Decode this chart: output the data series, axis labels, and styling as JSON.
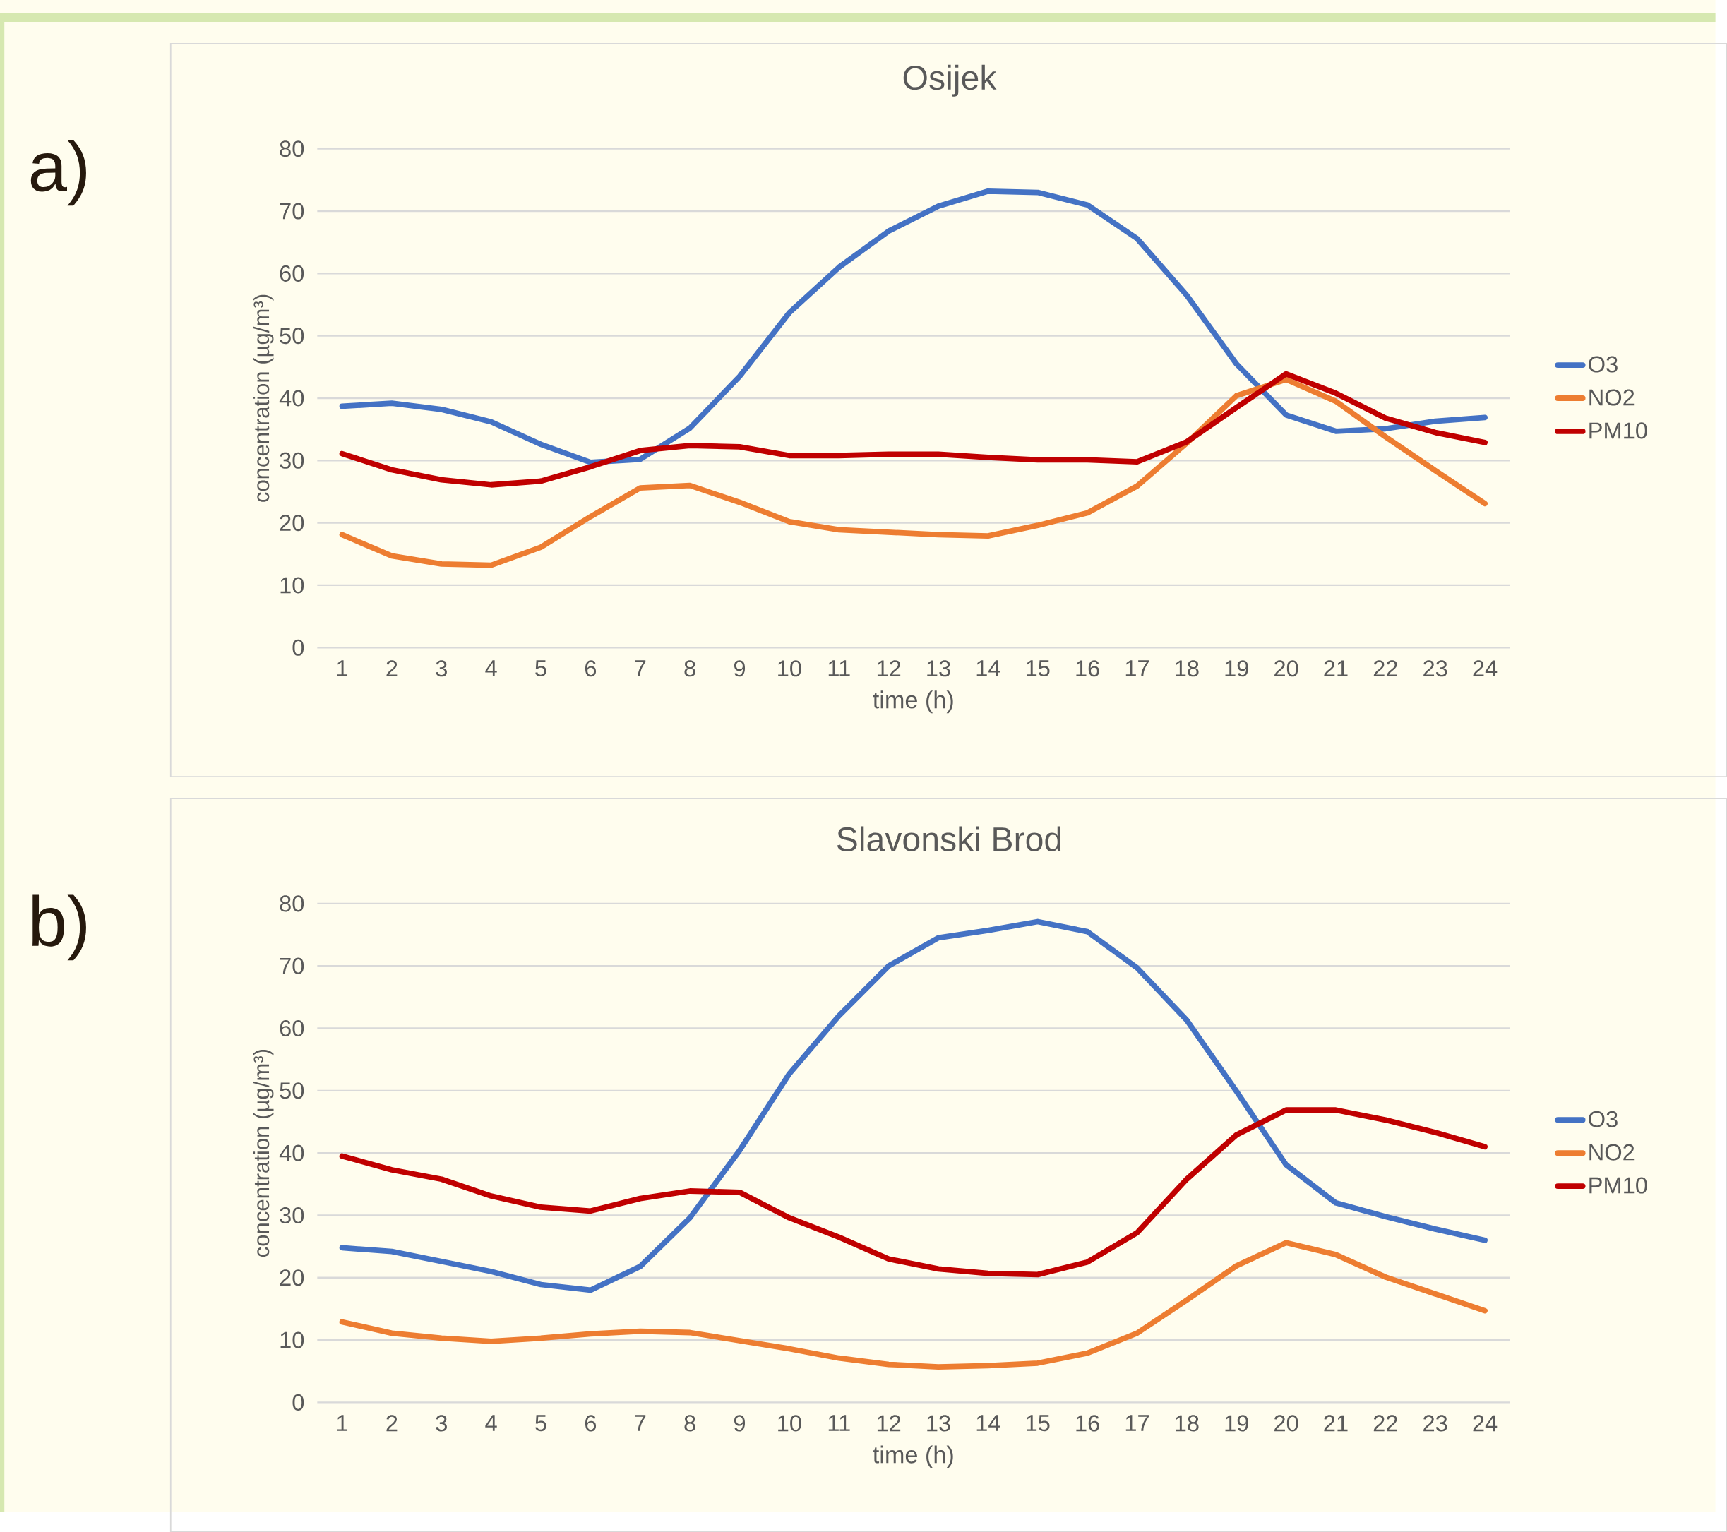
{
  "chart_data": [
    {
      "type": "line",
      "title": "Osijek",
      "xlabel": "time (h)",
      "ylabel": "concentration (µg/m³)",
      "annotations": [
        "a)"
      ],
      "categories": [
        "1",
        "2",
        "3",
        "4",
        "5",
        "6",
        "7",
        "8",
        "9",
        "10",
        "11",
        "12",
        "13",
        "14",
        "15",
        "16",
        "17",
        "18",
        "19",
        "20",
        "21",
        "22",
        "23",
        "24"
      ],
      "ylim": [
        0,
        80
      ],
      "yticks": [
        0,
        10,
        20,
        30,
        40,
        50,
        60,
        70,
        80
      ],
      "grid": "y",
      "legend": "right",
      "line_style": "solid",
      "series": [
        {
          "name": "O3",
          "color": "#4472c4",
          "values": [
            38.7,
            39.2,
            38.2,
            36.2,
            32.6,
            29.7,
            30.2,
            35.2,
            43.5,
            53.7,
            61,
            66.8,
            70.8,
            73.2,
            73,
            71,
            65.6,
            56.5,
            45.5,
            37.3,
            34.7,
            35.1,
            36.3,
            36.9
          ]
        },
        {
          "name": "NO2",
          "color": "#ed7d31",
          "values": [
            18.1,
            14.7,
            13.4,
            13.2,
            16.1,
            21,
            25.6,
            26,
            23.3,
            20.2,
            18.9,
            18.5,
            18.1,
            17.9,
            19.6,
            21.6,
            25.9,
            32.8,
            40.4,
            43,
            39.5,
            33.8,
            28.4,
            23.1
          ]
        },
        {
          "name": "PM10",
          "color": "#c00000",
          "values": [
            31.1,
            28.5,
            26.9,
            26.1,
            26.7,
            29,
            31.6,
            32.4,
            32.2,
            30.8,
            30.8,
            31,
            31,
            30.5,
            30.1,
            30.1,
            29.8,
            33,
            38.5,
            43.9,
            40.8,
            36.8,
            34.5,
            32.9
          ]
        }
      ]
    },
    {
      "type": "line",
      "title": "Slavonski Brod",
      "xlabel": "time (h)",
      "ylabel": "concentration (µg/m³)",
      "annotations": [
        "b)"
      ],
      "categories": [
        "1",
        "2",
        "3",
        "4",
        "5",
        "6",
        "7",
        "8",
        "9",
        "10",
        "11",
        "12",
        "13",
        "14",
        "15",
        "16",
        "17",
        "18",
        "19",
        "20",
        "21",
        "22",
        "23",
        "24"
      ],
      "ylim": [
        0,
        80
      ],
      "yticks": [
        0,
        10,
        20,
        30,
        40,
        50,
        60,
        70,
        80
      ],
      "grid": "y",
      "legend": "right",
      "line_style": "solid",
      "series": [
        {
          "name": "O3",
          "color": "#4472c4",
          "values": [
            24.8,
            24.2,
            22.6,
            21,
            18.9,
            18,
            21.8,
            29.6,
            40.4,
            52.7,
            62,
            70,
            74.5,
            75.7,
            77.1,
            75.5,
            69.7,
            61.3,
            49.9,
            38.1,
            32,
            29.8,
            27.8,
            26
          ]
        },
        {
          "name": "NO2",
          "color": "#ed7d31",
          "values": [
            12.9,
            11.1,
            10.3,
            9.8,
            10.3,
            11,
            11.4,
            11.2,
            9.9,
            8.6,
            7.1,
            6.1,
            5.7,
            5.9,
            6.3,
            7.9,
            11.1,
            16.4,
            21.9,
            25.6,
            23.7,
            20.1,
            17.4,
            14.7
          ]
        },
        {
          "name": "PM10",
          "color": "#c00000",
          "values": [
            39.5,
            37.3,
            35.8,
            33.1,
            31.3,
            30.7,
            32.7,
            33.9,
            33.7,
            29.6,
            26.5,
            23,
            21.4,
            20.7,
            20.5,
            22.5,
            27.2,
            35.8,
            42.9,
            46.9,
            46.9,
            45.3,
            43.3,
            41
          ]
        }
      ]
    }
  ]
}
